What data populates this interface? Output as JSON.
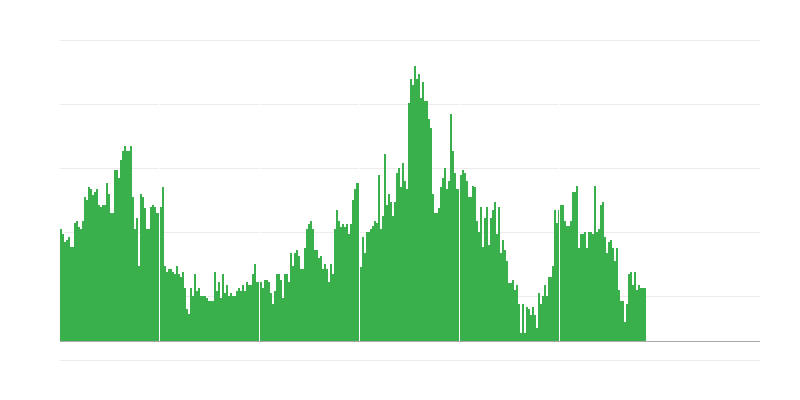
{
  "chart_data": {
    "type": "bar",
    "title": "",
    "xlabel": "",
    "ylabel": "",
    "ylim": [
      0,
      301
    ],
    "grid": true,
    "legend": "none",
    "bar_color": "#39b04c",
    "values": [
      112,
      107,
      99,
      101,
      104,
      94,
      94,
      118,
      120,
      114,
      112,
      120,
      144,
      141,
      154,
      152,
      146,
      149,
      152,
      136,
      134,
      136,
      136,
      158,
      147,
      128,
      128,
      171,
      171,
      163,
      181,
      190,
      195,
      190,
      190,
      195,
      144,
      112,
      123,
      75,
      147,
      144,
      133,
      112,
      112,
      134,
      136,
      134,
      128,
      128,
      134,
      154,
      75,
      69,
      72,
      72,
      69,
      67,
      75,
      67,
      64,
      69,
      53,
      32,
      27,
      53,
      45,
      67,
      50,
      53,
      45,
      45,
      45,
      43,
      40,
      40,
      40,
      69,
      50,
      59,
      43,
      67,
      48,
      56,
      45,
      48,
      45,
      45,
      50,
      53,
      50,
      56,
      50,
      59,
      56,
      56,
      67,
      77,
      59,
      59,
      59,
      53,
      61,
      61,
      59,
      48,
      37,
      50,
      67,
      67,
      61,
      43,
      67,
      67,
      59,
      88,
      75,
      88,
      91,
      85,
      72,
      72,
      93,
      112,
      117,
      120,
      112,
      91,
      91,
      83,
      85,
      72,
      77,
      72,
      59,
      77,
      67,
      112,
      131,
      120,
      114,
      117,
      114,
      117,
      107,
      117,
      141,
      152,
      158,
      158,
      74,
      104,
      88,
      109,
      109,
      112,
      115,
      120,
      118,
      166,
      112,
      125,
      187,
      136,
      147,
      139,
      125,
      139,
      168,
      173,
      154,
      178,
      160,
      152,
      238,
      262,
      256,
      275,
      262,
      267,
      243,
      259,
      240,
      240,
      222,
      213,
      147,
      128,
      128,
      133,
      154,
      163,
      173,
      152,
      160,
      227,
      190,
      168,
      152,
      152,
      166,
      171,
      168,
      160,
      144,
      144,
      155,
      154,
      120,
      109,
      134,
      94,
      123,
      134,
      96,
      123,
      131,
      139,
      107,
      134,
      88,
      101,
      91,
      80,
      58,
      58,
      61,
      51,
      56,
      37,
      8,
      37,
      8,
      34,
      32,
      26,
      34,
      26,
      13,
      48,
      37,
      45,
      56,
      45,
      64,
      64,
      75,
      131,
      118,
      131,
      136,
      136,
      120,
      115,
      115,
      120,
      149,
      149,
      155,
      93,
      107,
      107,
      109,
      93,
      109,
      109,
      107,
      155,
      109,
      112,
      136,
      139,
      104,
      88,
      99,
      101,
      93,
      80,
      93,
      51,
      40,
      40,
      19,
      37,
      67,
      69,
      56,
      69,
      51,
      56,
      53,
      53,
      53
    ]
  }
}
